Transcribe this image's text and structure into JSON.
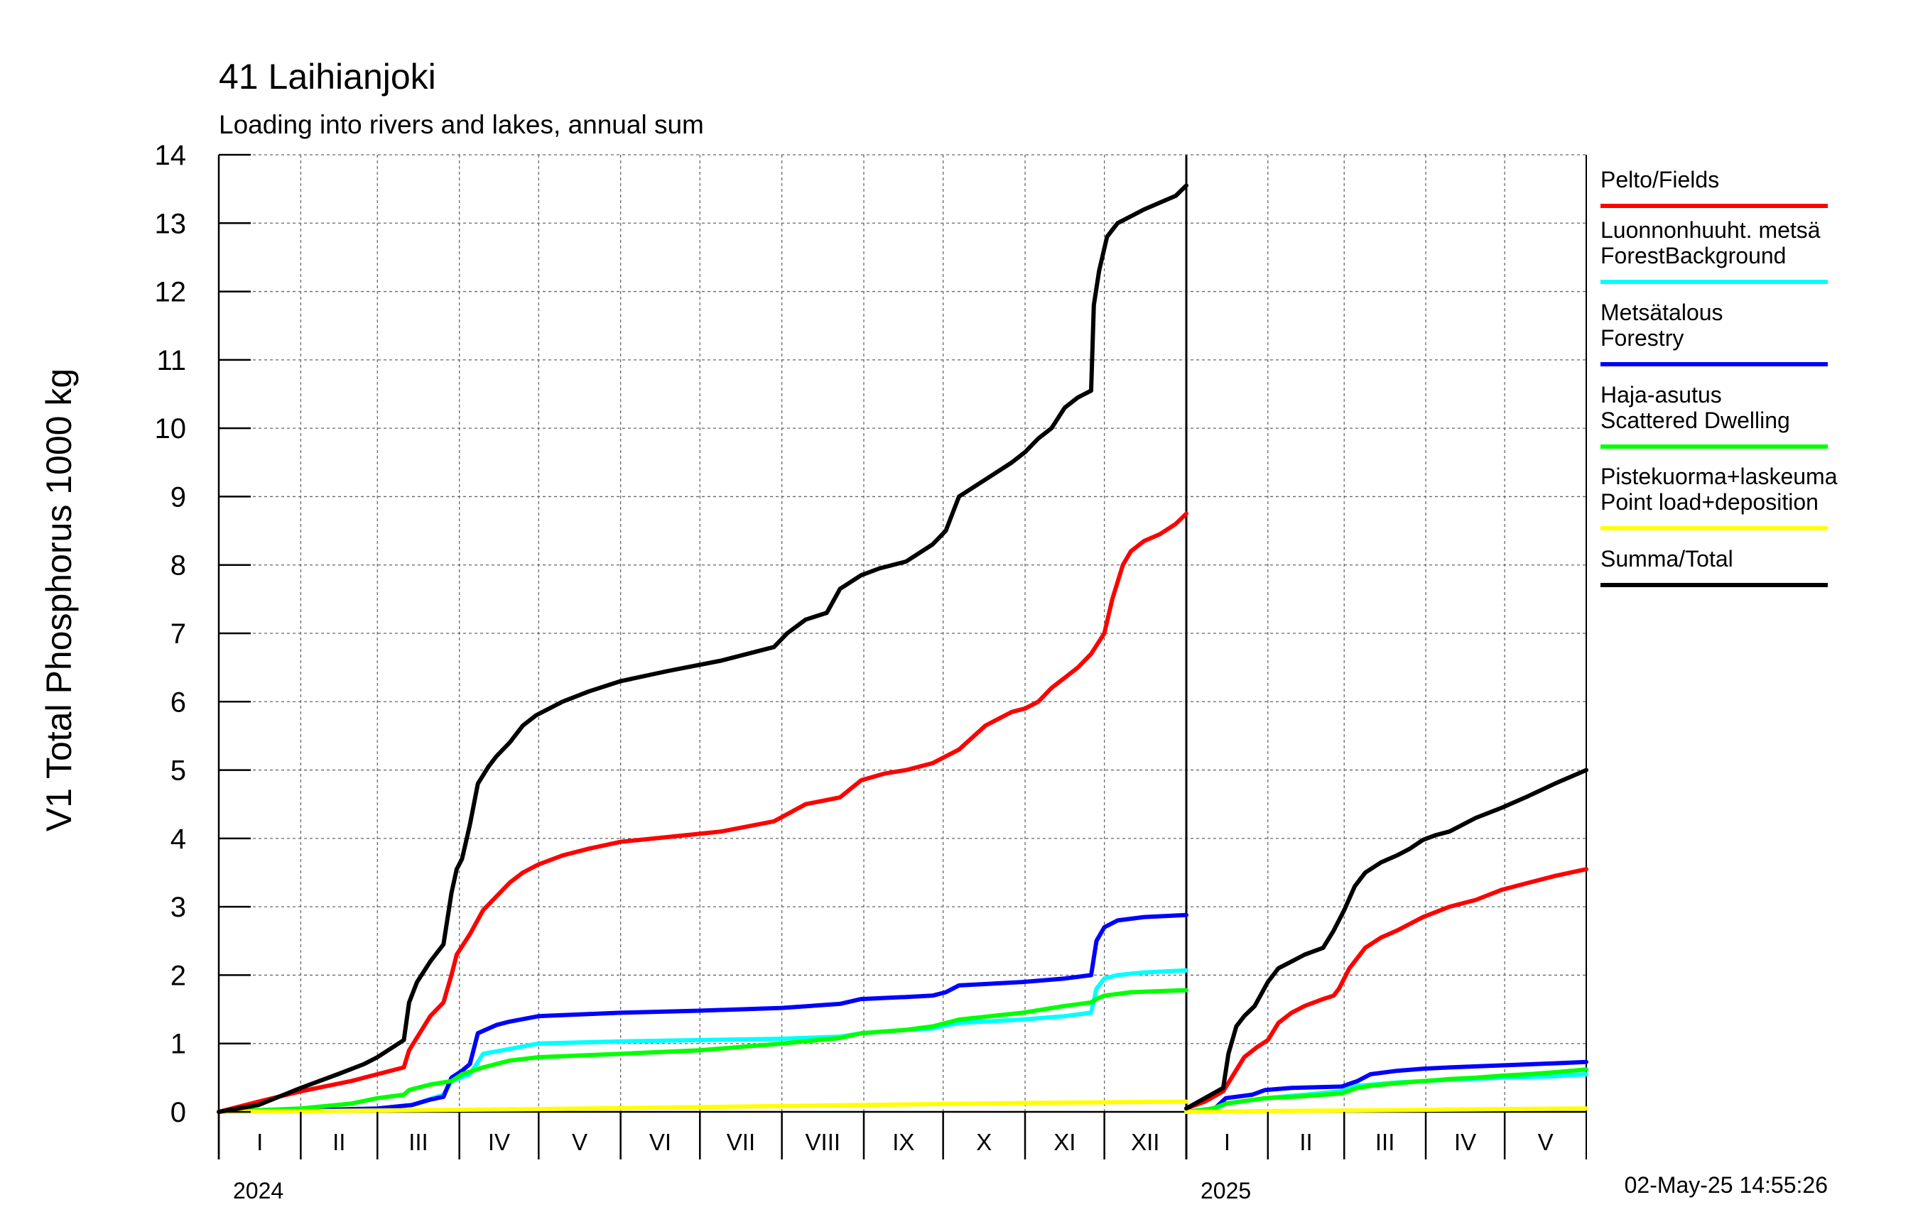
{
  "chart_data": {
    "type": "line",
    "title": "41 Laihianjoki",
    "subtitle": "Loading into rivers and lakes, annual sum",
    "ylabel": "V1 Total Phosphorus 1000 kg",
    "ylim": [
      0,
      14
    ],
    "yticks": [
      "0",
      "1",
      "2",
      "3",
      "4",
      "5",
      "6",
      "7",
      "8",
      "9",
      "10",
      "11",
      "12",
      "13",
      "14"
    ],
    "grid": true,
    "legend_position": "right",
    "timestamp": "02-May-25 14:55:26",
    "panels": [
      {
        "year_label": "2024",
        "months": [
          "I",
          "II",
          "III",
          "IV",
          "V",
          "VI",
          "VII",
          "VIII",
          "IX",
          "X",
          "XI",
          "XII"
        ],
        "x_unit": "day of year",
        "xlim": [
          0,
          366
        ],
        "series": [
          {
            "name": "Pelto/Fields",
            "color": "#ff0000",
            "x": [
              0,
              15,
              31,
              50,
              60,
              70,
              72,
              80,
              85,
              88,
              90,
              95,
              100,
              105,
              110,
              115,
              121,
              130,
              140,
              152,
              170,
              190,
              210,
              222,
              235,
              243,
              252,
              260,
              270,
              280,
              290,
              300,
              305,
              310,
              315,
              320,
              325,
              330,
              335,
              338,
              342,
              345,
              350,
              356,
              362,
              366
            ],
            "y": [
              0,
              0.15,
              0.3,
              0.45,
              0.55,
              0.65,
              0.9,
              1.4,
              1.6,
              2.0,
              2.3,
              2.6,
              2.95,
              3.15,
              3.35,
              3.5,
              3.62,
              3.75,
              3.85,
              3.95,
              4.02,
              4.1,
              4.25,
              4.5,
              4.6,
              4.85,
              4.95,
              5.0,
              5.1,
              5.3,
              5.65,
              5.85,
              5.9,
              6.0,
              6.2,
              6.35,
              6.5,
              6.7,
              7.0,
              7.5,
              8.0,
              8.2,
              8.35,
              8.45,
              8.6,
              8.75
            ]
          },
          {
            "name": "Luonnonhuuht. metsä ForestBackground",
            "color": "#00ffff",
            "x": [
              0,
              31,
              60,
              73,
              85,
              88,
              95,
              100,
              110,
              121,
              152,
              182,
              213,
              235,
              243,
              260,
              270,
              280,
              304,
              320,
              330,
              332,
              335,
              340,
              350,
              366
            ],
            "y": [
              0,
              0.02,
              0.05,
              0.1,
              0.25,
              0.45,
              0.55,
              0.85,
              0.92,
              1.0,
              1.03,
              1.05,
              1.07,
              1.1,
              1.15,
              1.2,
              1.22,
              1.3,
              1.35,
              1.4,
              1.45,
              1.8,
              1.95,
              2.0,
              2.04,
              2.07
            ]
          },
          {
            "name": "Metsätalous Forestry",
            "color": "#0000ff",
            "x": [
              0,
              31,
              60,
              73,
              80,
              85,
              88,
              92,
              95,
              98,
              105,
              110,
              121,
              152,
              182,
              213,
              235,
              243,
              260,
              270,
              275,
              280,
              304,
              320,
              330,
              332,
              335,
              340,
              350,
              366
            ],
            "y": [
              0,
              0.02,
              0.05,
              0.1,
              0.18,
              0.22,
              0.5,
              0.6,
              0.7,
              1.15,
              1.27,
              1.32,
              1.4,
              1.45,
              1.48,
              1.52,
              1.58,
              1.65,
              1.68,
              1.7,
              1.75,
              1.85,
              1.9,
              1.95,
              2.0,
              2.5,
              2.7,
              2.8,
              2.85,
              2.88
            ]
          },
          {
            "name": "Haja-asutus Scattered Dwelling",
            "color": "#00ff00",
            "x": [
              0,
              31,
              50,
              60,
              70,
              72,
              80,
              88,
              92,
              100,
              110,
              121,
              152,
              182,
              213,
              235,
              243,
              260,
              270,
              280,
              304,
              320,
              330,
              332,
              335,
              345,
              366
            ],
            "y": [
              0,
              0.05,
              0.12,
              0.2,
              0.25,
              0.32,
              0.4,
              0.45,
              0.55,
              0.65,
              0.75,
              0.8,
              0.85,
              0.9,
              1.0,
              1.08,
              1.15,
              1.2,
              1.25,
              1.35,
              1.45,
              1.55,
              1.6,
              1.65,
              1.7,
              1.75,
              1.78
            ]
          },
          {
            "name": "Pistekuorma+laskeuma Point load+deposition",
            "color": "#ffff00",
            "x": [
              0,
              60,
              121,
              182,
              243,
              304,
              366
            ],
            "y": [
              0,
              0.02,
              0.04,
              0.07,
              0.1,
              0.13,
              0.15
            ]
          },
          {
            "name": "Summa/Total",
            "color": "#000000",
            "x": [
              0,
              15,
              31,
              45,
              55,
              60,
              70,
              72,
              75,
              80,
              85,
              88,
              90,
              92,
              95,
              98,
              102,
              105,
              110,
              115,
              120,
              125,
              130,
              140,
              152,
              170,
              190,
              210,
              215,
              222,
              230,
              235,
              243,
              250,
              260,
              270,
              275,
              280,
              290,
              300,
              305,
              310,
              315,
              320,
              325,
              330,
              331,
              333,
              336,
              340,
              345,
              350,
              356,
              362,
              366
            ],
            "y": [
              0,
              0.1,
              0.35,
              0.55,
              0.7,
              0.8,
              1.05,
              1.6,
              1.9,
              2.2,
              2.45,
              3.2,
              3.55,
              3.7,
              4.2,
              4.8,
              5.05,
              5.2,
              5.4,
              5.65,
              5.8,
              5.9,
              6.0,
              6.15,
              6.3,
              6.45,
              6.6,
              6.8,
              7.0,
              7.2,
              7.3,
              7.65,
              7.85,
              7.95,
              8.05,
              8.3,
              8.5,
              9.0,
              9.25,
              9.5,
              9.65,
              9.85,
              10.0,
              10.3,
              10.45,
              10.55,
              11.8,
              12.3,
              12.8,
              13.0,
              13.1,
              13.2,
              13.3,
              13.4,
              13.55
            ]
          }
        ]
      },
      {
        "year_label": "2025",
        "months": [
          "I",
          "II",
          "III",
          "IV",
          "V"
        ],
        "x_unit": "day of year",
        "xlim": [
          0,
          152
        ],
        "series": [
          {
            "name": "Pelto/Fields",
            "color": "#ff0000",
            "x": [
              0,
              7,
              14,
              18,
              22,
              27,
              31,
              35,
              40,
              45,
              52,
              56,
              58,
              62,
              68,
              74,
              80,
              90,
              100,
              110,
              120,
              130,
              140,
              152
            ],
            "y": [
              0.05,
              0.15,
              0.3,
              0.55,
              0.8,
              0.95,
              1.05,
              1.3,
              1.45,
              1.55,
              1.65,
              1.7,
              1.8,
              2.1,
              2.4,
              2.55,
              2.65,
              2.85,
              3.0,
              3.1,
              3.25,
              3.35,
              3.45,
              3.55
            ]
          },
          {
            "name": "Luonnonhuuht. metsä ForestBackground",
            "color": "#00ffff",
            "x": [
              0,
              10,
              15,
              30,
              45,
              59,
              65,
              80,
              100,
              120,
              140,
              152
            ],
            "y": [
              0,
              0.02,
              0.12,
              0.2,
              0.25,
              0.3,
              0.38,
              0.43,
              0.47,
              0.5,
              0.52,
              0.55
            ]
          },
          {
            "name": "Metsätalous Forestry",
            "color": "#0000ff",
            "x": [
              0,
              10,
              15,
              25,
              30,
              40,
              59,
              65,
              70,
              80,
              90,
              100,
              120,
              140,
              152
            ],
            "y": [
              0,
              0.02,
              0.2,
              0.25,
              0.32,
              0.35,
              0.37,
              0.45,
              0.55,
              0.6,
              0.63,
              0.65,
              0.68,
              0.71,
              0.73
            ]
          },
          {
            "name": "Haja-asutus Scattered Dwelling",
            "color": "#00ff00",
            "x": [
              0,
              10,
              15,
              30,
              45,
              59,
              65,
              70,
              80,
              90,
              100,
              110,
              120,
              130,
              140,
              152
            ],
            "y": [
              0,
              0.05,
              0.12,
              0.2,
              0.23,
              0.27,
              0.35,
              0.38,
              0.42,
              0.45,
              0.48,
              0.5,
              0.53,
              0.55,
              0.58,
              0.62
            ]
          },
          {
            "name": "Pistekuorma+laskeuma Point load+deposition",
            "color": "#ffff00",
            "x": [
              0,
              31,
              59,
              90,
              120,
              152
            ],
            "y": [
              0,
              0.01,
              0.02,
              0.03,
              0.04,
              0.05
            ]
          },
          {
            "name": "Summa/Total",
            "color": "#000000",
            "x": [
              0,
              7,
              14,
              16,
              19,
              22,
              26,
              31,
              35,
              40,
              45,
              52,
              56,
              60,
              64,
              68,
              74,
              80,
              85,
              90,
              95,
              100,
              110,
              120,
              130,
              140,
              152
            ],
            "y": [
              0.05,
              0.2,
              0.35,
              0.85,
              1.25,
              1.4,
              1.55,
              1.9,
              2.1,
              2.2,
              2.3,
              2.4,
              2.65,
              2.95,
              3.3,
              3.5,
              3.65,
              3.75,
              3.85,
              3.98,
              4.05,
              4.1,
              4.3,
              4.45,
              4.62,
              4.8,
              5.0
            ]
          }
        ]
      }
    ]
  },
  "legend": {
    "items": [
      {
        "lines": [
          "Pelto/Fields"
        ],
        "color": "#ff0000"
      },
      {
        "lines": [
          "Luonnonhuuht. metsä",
          "ForestBackground"
        ],
        "color": "#00ffff"
      },
      {
        "lines": [
          "Metsätalous",
          "Forestry"
        ],
        "color": "#0000ff"
      },
      {
        "lines": [
          "Haja-asutus",
          "Scattered Dwelling"
        ],
        "color": "#00ff00"
      },
      {
        "lines": [
          "Pistekuorma+laskeuma",
          "Point load+deposition"
        ],
        "color": "#ffff00"
      },
      {
        "lines": [
          "Summa/Total"
        ],
        "color": "#000000"
      }
    ]
  }
}
